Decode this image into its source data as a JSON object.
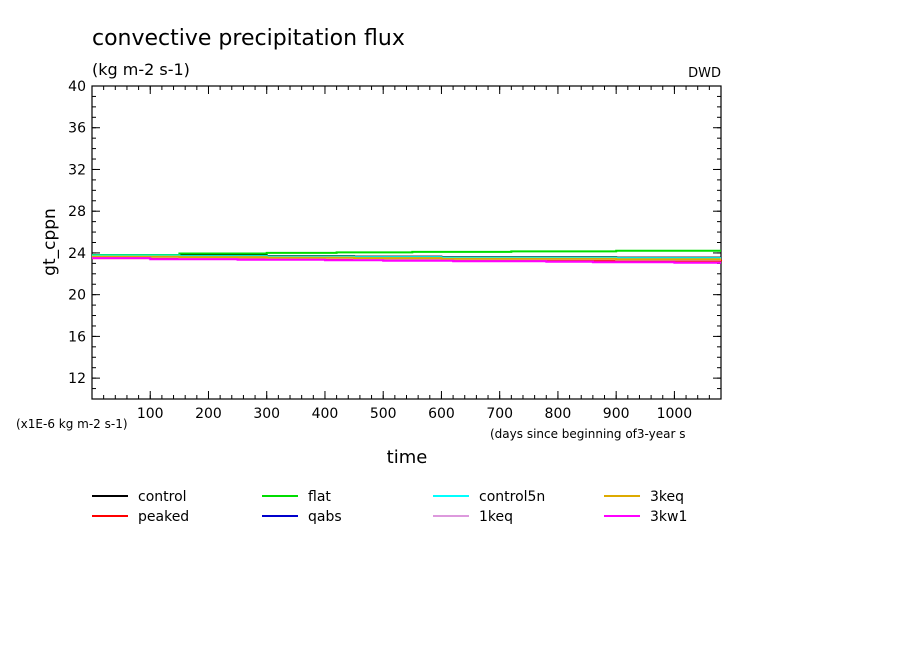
{
  "chart_data": {
    "type": "line",
    "title": "convective precipitation flux",
    "units": "(kg m-2 s-1)",
    "source": "DWD",
    "xlabel": "time",
    "x_note": "(days since beginning of3-year s",
    "ylabel": "gt_cppn",
    "y_scale_note": "(x1E-6 kg m-2 s-1)",
    "xlim": [
      0,
      1080
    ],
    "ylim": [
      10,
      40
    ],
    "x_ticks": [
      100,
      200,
      300,
      400,
      500,
      600,
      700,
      800,
      900,
      1000
    ],
    "y_ticks": [
      12,
      16,
      20,
      24,
      28,
      32,
      36,
      40
    ],
    "x_minor_step": 20,
    "y_minor_step": 1,
    "series": [
      {
        "name": "control",
        "color": "#000000",
        "x": [
          0,
          150,
          300,
          450,
          600,
          750,
          900,
          1080
        ],
        "y": [
          23.8,
          23.75,
          23.7,
          23.65,
          23.6,
          23.6,
          23.55,
          23.55
        ]
      },
      {
        "name": "peaked",
        "color": "#ff0000",
        "x": [
          0,
          150,
          250,
          400,
          500,
          650,
          800,
          950,
          1080
        ],
        "y": [
          23.5,
          23.45,
          23.4,
          23.35,
          23.3,
          23.3,
          23.25,
          23.25,
          23.2
        ]
      },
      {
        "name": "flat",
        "color": "#00dd00",
        "x": [
          0,
          80,
          150,
          300,
          420,
          550,
          720,
          900,
          1080
        ],
        "y": [
          23.8,
          23.8,
          23.95,
          24.0,
          24.05,
          24.1,
          24.15,
          24.2,
          24.2
        ]
      },
      {
        "name": "qabs",
        "color": "#0000cc",
        "x": [
          0,
          150,
          300,
          450,
          600,
          750,
          900,
          1080
        ],
        "y": [
          23.7,
          23.65,
          23.6,
          23.55,
          23.5,
          23.5,
          23.45,
          23.45
        ]
      },
      {
        "name": "control5n",
        "color": "#00ffff",
        "x": [
          0,
          150,
          300,
          450,
          600,
          750,
          900,
          1080
        ],
        "y": [
          23.75,
          23.7,
          23.65,
          23.6,
          23.55,
          23.55,
          23.5,
          23.5
        ]
      },
      {
        "name": "1keq",
        "color": "#dd99dd",
        "x": [
          0,
          150,
          300,
          450,
          600,
          750,
          900,
          1080
        ],
        "y": [
          23.6,
          23.55,
          23.5,
          23.45,
          23.4,
          23.4,
          23.35,
          23.35
        ]
      },
      {
        "name": "3keq",
        "color": "#ddaa00",
        "x": [
          0,
          150,
          300,
          450,
          600,
          750,
          900,
          1080
        ],
        "y": [
          23.65,
          23.6,
          23.55,
          23.5,
          23.45,
          23.45,
          23.4,
          23.4
        ]
      },
      {
        "name": "3kw1",
        "color": "#ff00ff",
        "x": [
          0,
          100,
          250,
          400,
          500,
          620,
          780,
          860,
          1000,
          1080
        ],
        "y": [
          23.5,
          23.4,
          23.35,
          23.3,
          23.25,
          23.2,
          23.15,
          23.1,
          23.05,
          23.05
        ]
      }
    ],
    "legend_order": [
      "control",
      "flat",
      "control5n",
      "3keq",
      "peaked",
      "qabs",
      "1keq",
      "3kw1"
    ],
    "legend_placement": "bottom",
    "grid": false
  }
}
